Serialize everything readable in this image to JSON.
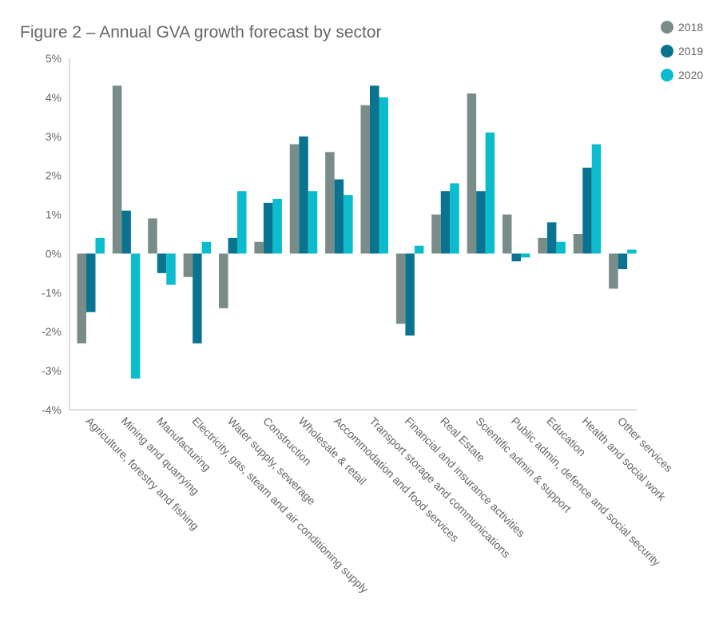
{
  "chart_data": {
    "type": "bar",
    "title": "Figure 2 – Annual GVA growth forecast by sector",
    "xlabel": "",
    "ylabel": "",
    "ylim": [
      -4,
      5
    ],
    "yticks": [
      "5%",
      "4%",
      "3%",
      "2%",
      "1%",
      "0%",
      "-1%",
      "-2%",
      "-3%",
      "-4%"
    ],
    "grid": false,
    "legend_position": "top-right",
    "categories": [
      "Agriculture, forestry and fishing",
      "Mining and quarrying",
      "Manufacturing",
      "Electricity, gas, steam and air conditioning supply",
      "Water supply, sewerage",
      "Construction",
      "Wholesale & retail",
      "Accommodation and food services",
      "Transport storage and communications",
      "Financial and insurance activities",
      "Real Estate",
      "Scientific admin & support",
      "Public admin, defence and social security",
      "Education",
      "Health and social work",
      "Other services"
    ],
    "series": [
      {
        "name": "2018",
        "color": "#7a8c8a",
        "values": [
          -2.3,
          4.3,
          0.9,
          -0.6,
          -1.4,
          0.3,
          2.8,
          2.6,
          3.8,
          -1.8,
          1.0,
          4.1,
          1.0,
          0.4,
          0.5,
          -0.9
        ]
      },
      {
        "name": "2019",
        "color": "#0a7490",
        "values": [
          -1.5,
          1.1,
          -0.5,
          -2.3,
          0.4,
          1.3,
          3.0,
          1.9,
          4.3,
          -2.1,
          1.6,
          1.6,
          -0.2,
          0.8,
          2.2,
          -0.4
        ]
      },
      {
        "name": "2020",
        "color": "#0bbccc",
        "values": [
          0.4,
          -3.2,
          -0.8,
          0.3,
          1.6,
          1.4,
          1.6,
          1.5,
          4.0,
          0.2,
          1.8,
          3.1,
          -0.1,
          0.3,
          2.8,
          0.1
        ]
      }
    ]
  }
}
